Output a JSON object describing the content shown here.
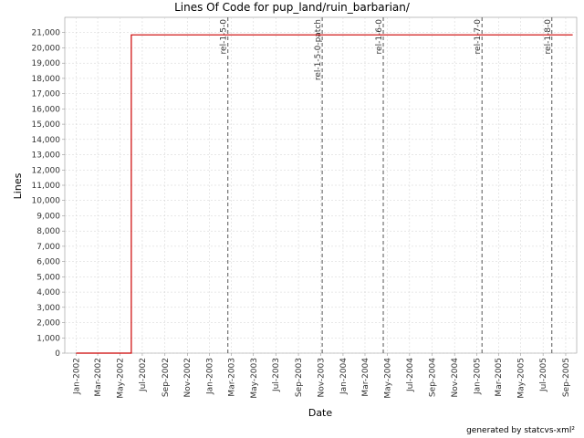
{
  "chart_data": {
    "type": "line",
    "title": "Lines Of Code for pup_land/ruin_barbarian/",
    "xlabel": "Date",
    "ylabel": "Lines",
    "ylim": [
      0,
      22000
    ],
    "xlim": [
      "2001-12",
      "2005-10"
    ],
    "grid": true,
    "yticks": [
      0,
      1000,
      2000,
      3000,
      4000,
      5000,
      6000,
      7000,
      8000,
      9000,
      10000,
      11000,
      12000,
      13000,
      14000,
      15000,
      16000,
      17000,
      18000,
      19000,
      20000,
      21000
    ],
    "ytick_labels": [
      "0",
      "1,000",
      "2,000",
      "3,000",
      "4,000",
      "5,000",
      "6,000",
      "7,000",
      "8,000",
      "9,000",
      "10,000",
      "11,000",
      "12,000",
      "13,000",
      "14,000",
      "15,000",
      "16,000",
      "17,000",
      "18,000",
      "19,000",
      "20,000",
      "21,000"
    ],
    "xtick_labels": [
      "Jan-2002",
      "Mar-2002",
      "May-2002",
      "Jul-2002",
      "Sep-2002",
      "Nov-2002",
      "Jan-2003",
      "Mar-2003",
      "May-2003",
      "Jul-2003",
      "Sep-2003",
      "Nov-2003",
      "Jan-2004",
      "Mar-2004",
      "May-2004",
      "Jul-2004",
      "Sep-2004",
      "Nov-2004",
      "Jan-2005",
      "Mar-2005",
      "May-2005",
      "Jul-2005",
      "Sep-2005"
    ],
    "series": [
      {
        "color": "#cc0000",
        "points": [
          {
            "date": "2002-01-01",
            "value": 0
          },
          {
            "date": "2002-06-01",
            "value": 0
          },
          {
            "date": "2002-06-01",
            "value": 20850
          },
          {
            "date": "2005-09-20",
            "value": 20850
          }
        ]
      }
    ],
    "markers": [
      {
        "label": "rel-1-5-0",
        "date": "2003-02-20"
      },
      {
        "label": "rel-1-5-0-patch",
        "date": "2003-11-05"
      },
      {
        "label": "rel-1-6-0",
        "date": "2004-04-20"
      },
      {
        "label": "rel-1-7-0",
        "date": "2005-01-15"
      },
      {
        "label": "rel-1-8-0",
        "date": "2005-07-25"
      }
    ]
  },
  "footer": "generated by statcvs-xml²"
}
